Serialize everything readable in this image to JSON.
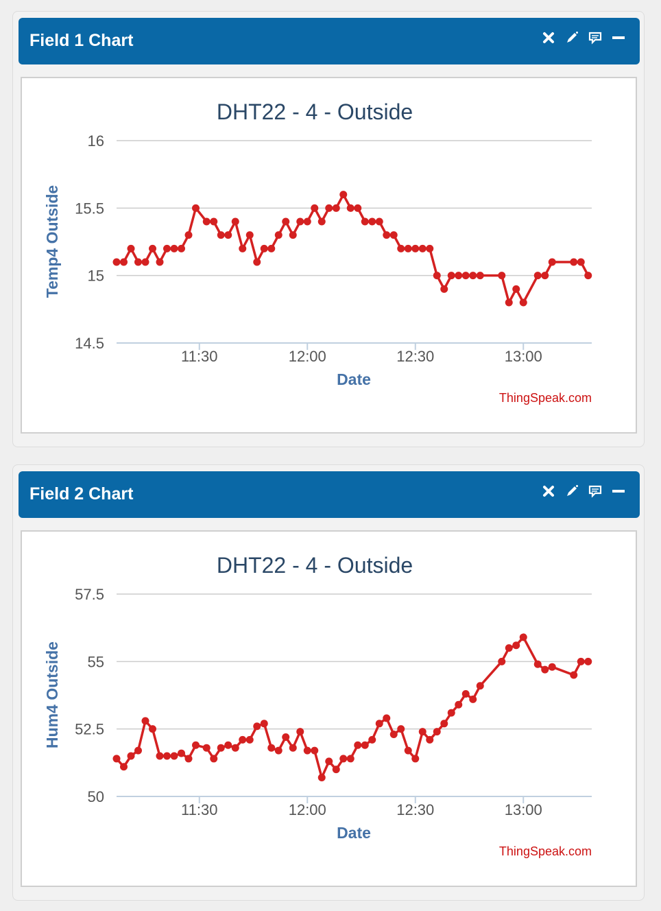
{
  "widgets": [
    {
      "header": {
        "title": "Field 1 Chart"
      },
      "chart_data": {
        "type": "line",
        "title": "DHT22 - 4 - Outside",
        "xlabel": "Date",
        "ylabel": "Temp4 Outside",
        "credit": "ThingSpeak.com",
        "color": "#d42121",
        "xlim": [
          "11:07",
          "13:19"
        ],
        "ylim": [
          14.5,
          16
        ],
        "yticks": [
          14.5,
          15,
          15.5,
          16
        ],
        "ytick_labels": [
          "14.5",
          "15",
          "15.5",
          "16"
        ],
        "xticks": [
          "11:30",
          "12:00",
          "12:30",
          "13:00"
        ],
        "grid": true,
        "series": [
          {
            "x": [
              "11:07",
              "11:09",
              "11:11",
              "11:13",
              "11:15",
              "11:17",
              "11:19",
              "11:21",
              "11:23",
              "11:25",
              "11:27",
              "11:29",
              "11:32",
              "11:34",
              "11:36",
              "11:38",
              "11:40",
              "11:42",
              "11:44",
              "11:46",
              "11:48",
              "11:50",
              "11:52",
              "11:54",
              "11:56",
              "11:58",
              "12:00",
              "12:02",
              "12:04",
              "12:06",
              "12:08",
              "12:10",
              "12:12",
              "12:14",
              "12:16",
              "12:18",
              "12:20",
              "12:22",
              "12:24",
              "12:26",
              "12:28",
              "12:30",
              "12:32",
              "12:34",
              "12:36",
              "12:38",
              "12:40",
              "12:42",
              "12:44",
              "12:46",
              "12:48",
              "12:54",
              "12:56",
              "12:58",
              "13:00",
              "13:04",
              "13:06",
              "13:08",
              "13:14",
              "13:16",
              "13:18"
            ],
            "y": [
              15.1,
              15.1,
              15.2,
              15.1,
              15.1,
              15.2,
              15.1,
              15.2,
              15.2,
              15.2,
              15.3,
              15.5,
              15.4,
              15.4,
              15.3,
              15.3,
              15.4,
              15.2,
              15.3,
              15.1,
              15.2,
              15.2,
              15.3,
              15.4,
              15.3,
              15.4,
              15.4,
              15.5,
              15.4,
              15.5,
              15.5,
              15.6,
              15.5,
              15.5,
              15.4,
              15.4,
              15.4,
              15.3,
              15.3,
              15.2,
              15.2,
              15.2,
              15.2,
              15.2,
              15.0,
              14.9,
              15.0,
              15.0,
              15.0,
              15.0,
              15.0,
              15.0,
              14.8,
              14.9,
              14.8,
              15.0,
              15.0,
              15.1,
              15.1,
              15.1,
              15.0
            ]
          }
        ]
      }
    },
    {
      "header": {
        "title": "Field 2 Chart"
      },
      "chart_data": {
        "type": "line",
        "title": "DHT22 - 4 - Outside",
        "xlabel": "Date",
        "ylabel": "Hum4 Outside",
        "credit": "ThingSpeak.com",
        "color": "#d42121",
        "xlim": [
          "11:07",
          "13:19"
        ],
        "ylim": [
          50,
          57.5
        ],
        "yticks": [
          50,
          52.5,
          55,
          57.5
        ],
        "ytick_labels": [
          "50",
          "52.5",
          "55",
          "57.5"
        ],
        "xticks": [
          "11:30",
          "12:00",
          "12:30",
          "13:00"
        ],
        "grid": true,
        "series": [
          {
            "x": [
              "11:07",
              "11:09",
              "11:11",
              "11:13",
              "11:15",
              "11:17",
              "11:19",
              "11:21",
              "11:23",
              "11:25",
              "11:27",
              "11:29",
              "11:32",
              "11:34",
              "11:36",
              "11:38",
              "11:40",
              "11:42",
              "11:44",
              "11:46",
              "11:48",
              "11:50",
              "11:52",
              "11:54",
              "11:56",
              "11:58",
              "12:00",
              "12:02",
              "12:04",
              "12:06",
              "12:08",
              "12:10",
              "12:12",
              "12:14",
              "12:16",
              "12:18",
              "12:20",
              "12:22",
              "12:24",
              "12:26",
              "12:28",
              "12:30",
              "12:32",
              "12:34",
              "12:36",
              "12:38",
              "12:40",
              "12:42",
              "12:44",
              "12:46",
              "12:48",
              "12:54",
              "12:56",
              "12:58",
              "13:00",
              "13:04",
              "13:06",
              "13:08",
              "13:14",
              "13:16",
              "13:18"
            ],
            "y": [
              51.4,
              51.1,
              51.5,
              51.7,
              52.8,
              52.5,
              51.5,
              51.5,
              51.5,
              51.6,
              51.4,
              51.9,
              51.8,
              51.4,
              51.8,
              51.9,
              51.8,
              52.1,
              52.1,
              52.6,
              52.7,
              51.8,
              51.7,
              52.2,
              51.8,
              52.4,
              51.7,
              51.7,
              50.7,
              51.3,
              51.0,
              51.4,
              51.4,
              51.9,
              51.9,
              52.1,
              52.7,
              52.9,
              52.3,
              52.5,
              51.7,
              51.4,
              52.4,
              52.1,
              52.4,
              52.7,
              53.1,
              53.4,
              53.8,
              53.6,
              54.1,
              55.0,
              55.5,
              55.6,
              55.9,
              54.9,
              54.7,
              54.8,
              54.5,
              55.0,
              55.0
            ]
          }
        ]
      }
    }
  ]
}
